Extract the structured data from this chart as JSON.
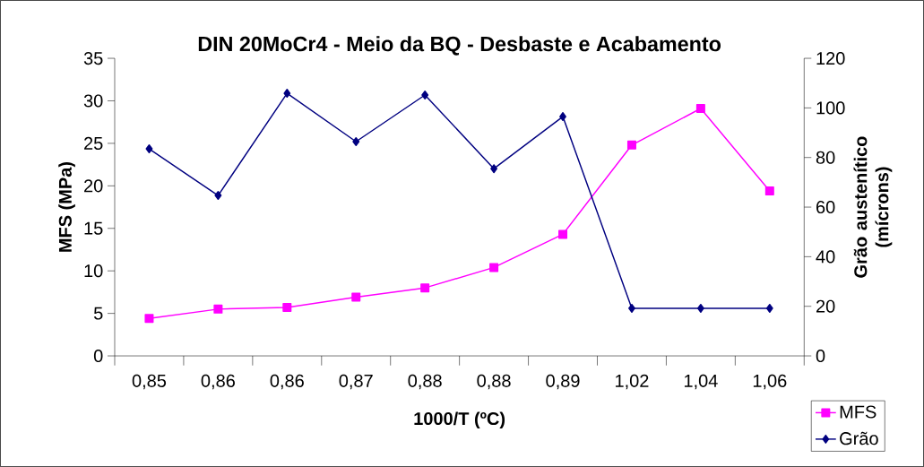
{
  "chart_data": {
    "type": "line",
    "title": "DIN 20MoCr4 - Meio da BQ - Desbaste e Acabamento",
    "xlabel": "1000/T (ºC)",
    "ylabel": "MFS (MPa)",
    "y2label": "Grão austenítico (mícrons)",
    "categories": [
      "0,85",
      "0,86",
      "0,86",
      "0,87",
      "0,88",
      "0,88",
      "0,89",
      "1,02",
      "1,04",
      "1,06"
    ],
    "series": [
      {
        "name": "MFS",
        "color": "#ff00ff",
        "marker": "square",
        "values": [
          4.4,
          5.5,
          5.7,
          6.9,
          8.0,
          10.4,
          14.3,
          24.8,
          29.1,
          19.4
        ]
      },
      {
        "name": "Grão",
        "color": "#000080",
        "marker": "diamond",
        "axis": "y2",
        "values": [
          83.5,
          64.7,
          105.9,
          86.4,
          105.2,
          75.5,
          96.5,
          19.2,
          19.2,
          19.2
        ]
      }
    ],
    "ylim": [
      0,
      35
    ],
    "yticks": [
      0,
      5,
      10,
      15,
      20,
      25,
      30,
      35
    ],
    "y2lim": [
      0,
      120
    ],
    "y2ticks": [
      0,
      20,
      40,
      60,
      80,
      100,
      120
    ],
    "grid": false,
    "legend": "bottom right"
  }
}
